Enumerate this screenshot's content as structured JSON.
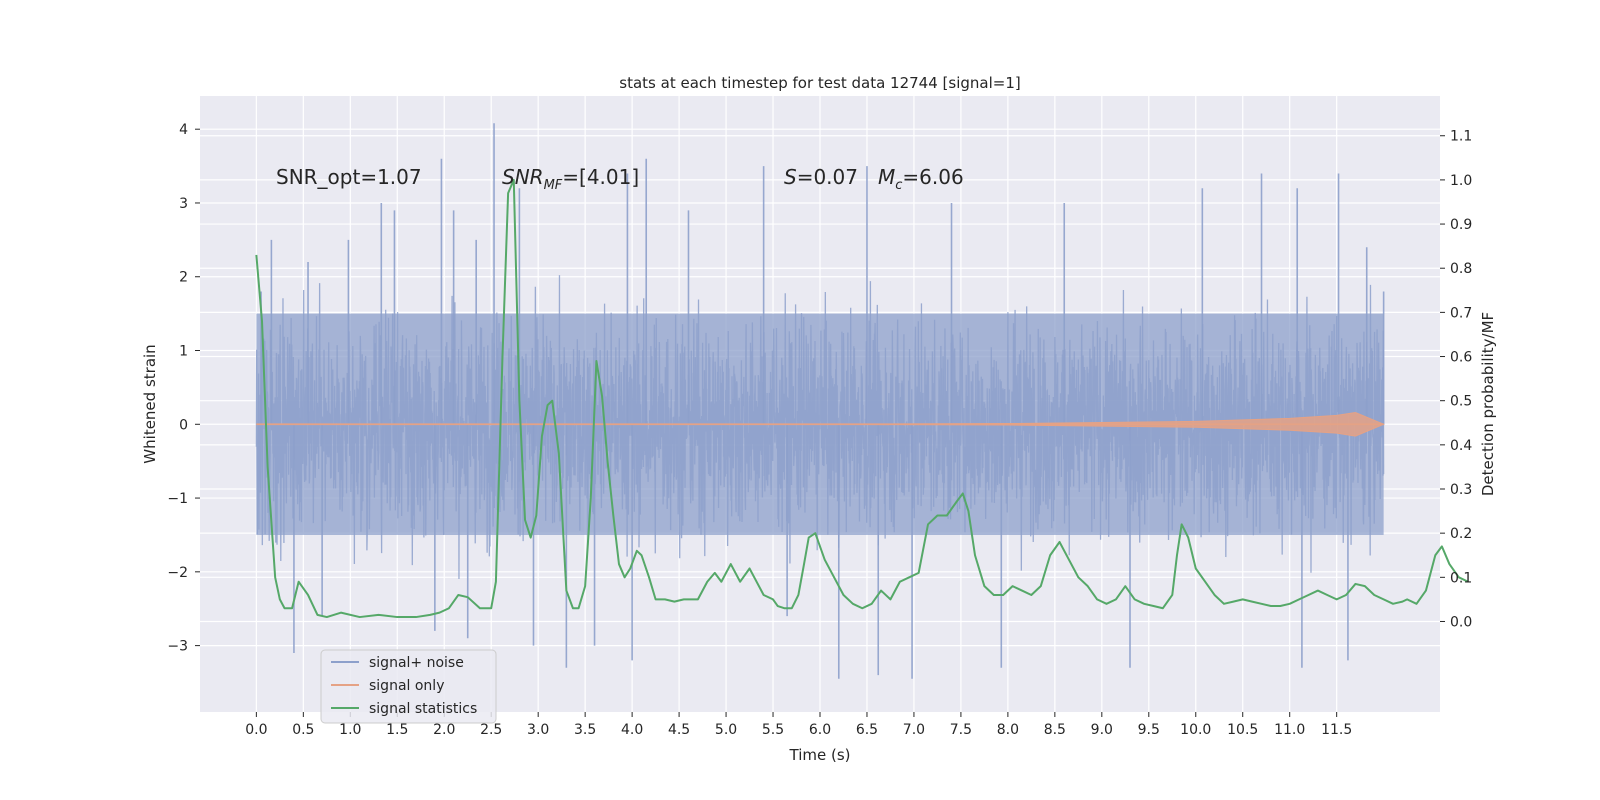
{
  "chart_data": {
    "type": "line",
    "title": "stats at each timestep for test data 12744 [signal=1]",
    "xlabel": "Time (s)",
    "ylabel_left": "Whitened strain",
    "ylabel_right": "Detection probability/MF",
    "xlim": [
      -0.6,
      12.6
    ],
    "ylim_left": [
      -3.9,
      4.45
    ],
    "ylim_right": [
      -0.205,
      1.19
    ],
    "x_ticks": [
      "0.0",
      "0.5",
      "1.0",
      "1.5",
      "2.0",
      "2.5",
      "3.0",
      "3.5",
      "4.0",
      "4.5",
      "5.0",
      "5.5",
      "6.0",
      "6.5",
      "7.0",
      "7.5",
      "8.0",
      "8.5",
      "9.0",
      "9.5",
      "10.0",
      "10.5",
      "11.0",
      "11.5"
    ],
    "y_ticks_left": [
      "4",
      "3",
      "2",
      "1",
      "0",
      "−1",
      "−2",
      "−3"
    ],
    "y_ticks_right": [
      "1.1",
      "1.0",
      "0.9",
      "0.8",
      "0.7",
      "0.6",
      "0.5",
      "0.4",
      "0.3",
      "0.2",
      "0.1",
      "0.0"
    ],
    "grid": true,
    "legend_position": "lower-left",
    "annotations": {
      "snr_opt": "SNR_opt=1.07",
      "snr_mf_main": "SNR",
      "snr_mf_sub": "MF",
      "snr_mf_value": "=[4.01]",
      "s_main": "S",
      "s_value": "=0.07",
      "mc_main": "M",
      "mc_sub": "c",
      "mc_value": "=6.06"
    },
    "series": [
      {
        "name": "signal+ noise",
        "color": "#8da0cb",
        "axis": "left",
        "style": "dense-noise",
        "time_range": [
          0.0,
          12.0
        ],
        "band_core": [
          -1.5,
          1.5
        ],
        "envelope_peak": [
          4.08,
          -3.45
        ],
        "points": [
          [
            0.05,
            1.8
          ],
          [
            0.16,
            2.5
          ],
          [
            0.4,
            -3.1
          ],
          [
            0.55,
            2.2
          ],
          [
            0.7,
            -2.6
          ],
          [
            0.98,
            2.5
          ],
          [
            1.33,
            3.0
          ],
          [
            1.47,
            2.9
          ],
          [
            1.9,
            -2.8
          ],
          [
            1.97,
            3.6
          ],
          [
            2.1,
            2.9
          ],
          [
            2.25,
            -2.9
          ],
          [
            2.34,
            2.5
          ],
          [
            2.53,
            4.08
          ],
          [
            2.8,
            3.2
          ],
          [
            2.95,
            -3.0
          ],
          [
            3.3,
            -3.3
          ],
          [
            3.6,
            -3.0
          ],
          [
            3.95,
            3.4
          ],
          [
            4.0,
            -3.2
          ],
          [
            4.15,
            3.6
          ],
          [
            4.6,
            2.9
          ],
          [
            5.4,
            3.5
          ],
          [
            5.65,
            -2.6
          ],
          [
            6.2,
            -3.45
          ],
          [
            6.5,
            3.5
          ],
          [
            6.62,
            -3.4
          ],
          [
            6.98,
            -3.45
          ],
          [
            7.4,
            3.0
          ],
          [
            7.93,
            -3.3
          ],
          [
            8.6,
            3.0
          ],
          [
            9.3,
            -3.3
          ],
          [
            10.07,
            3.2
          ],
          [
            10.7,
            3.4
          ],
          [
            11.08,
            3.2
          ],
          [
            11.13,
            -3.3
          ],
          [
            11.52,
            3.4
          ],
          [
            11.62,
            -3.2
          ],
          [
            11.82,
            2.4
          ],
          [
            12.0,
            1.8
          ]
        ]
      },
      {
        "name": "signal only",
        "color": "#e5a285",
        "axis": "left",
        "style": "chirp",
        "points": [
          [
            0.0,
            0.0
          ],
          [
            6.0,
            0.0
          ],
          [
            8.0,
            0.01
          ],
          [
            10.0,
            0.04
          ],
          [
            11.0,
            0.08
          ],
          [
            11.5,
            0.12
          ],
          [
            11.7,
            0.16
          ],
          [
            12.0,
            0.0
          ]
        ]
      },
      {
        "name": "signal statistics",
        "color": "#55a868",
        "axis": "right",
        "style": "line",
        "points": [
          [
            0.0,
            0.83
          ],
          [
            0.06,
            0.68
          ],
          [
            0.12,
            0.35
          ],
          [
            0.2,
            0.1
          ],
          [
            0.25,
            0.05
          ],
          [
            0.3,
            0.03
          ],
          [
            0.38,
            0.03
          ],
          [
            0.45,
            0.09
          ],
          [
            0.55,
            0.06
          ],
          [
            0.65,
            0.015
          ],
          [
            0.75,
            0.01
          ],
          [
            0.9,
            0.02
          ],
          [
            1.1,
            0.01
          ],
          [
            1.3,
            0.015
          ],
          [
            1.5,
            0.01
          ],
          [
            1.7,
            0.01
          ],
          [
            1.85,
            0.015
          ],
          [
            1.95,
            0.02
          ],
          [
            2.05,
            0.03
          ],
          [
            2.15,
            0.06
          ],
          [
            2.25,
            0.055
          ],
          [
            2.38,
            0.03
          ],
          [
            2.5,
            0.03
          ],
          [
            2.55,
            0.09
          ],
          [
            2.62,
            0.6
          ],
          [
            2.68,
            0.97
          ],
          [
            2.74,
            1.0
          ],
          [
            2.8,
            0.5
          ],
          [
            2.86,
            0.23
          ],
          [
            2.92,
            0.19
          ],
          [
            2.98,
            0.24
          ],
          [
            3.04,
            0.42
          ],
          [
            3.1,
            0.49
          ],
          [
            3.15,
            0.5
          ],
          [
            3.22,
            0.38
          ],
          [
            3.3,
            0.07
          ],
          [
            3.37,
            0.03
          ],
          [
            3.43,
            0.03
          ],
          [
            3.5,
            0.08
          ],
          [
            3.56,
            0.28
          ],
          [
            3.62,
            0.59
          ],
          [
            3.68,
            0.51
          ],
          [
            3.74,
            0.36
          ],
          [
            3.8,
            0.24
          ],
          [
            3.86,
            0.13
          ],
          [
            3.92,
            0.1
          ],
          [
            3.98,
            0.12
          ],
          [
            4.05,
            0.16
          ],
          [
            4.1,
            0.15
          ],
          [
            4.18,
            0.1
          ],
          [
            4.25,
            0.05
          ],
          [
            4.35,
            0.05
          ],
          [
            4.45,
            0.045
          ],
          [
            4.55,
            0.05
          ],
          [
            4.62,
            0.05
          ],
          [
            4.7,
            0.05
          ],
          [
            4.8,
            0.09
          ],
          [
            4.88,
            0.11
          ],
          [
            4.95,
            0.09
          ],
          [
            5.05,
            0.13
          ],
          [
            5.15,
            0.09
          ],
          [
            5.25,
            0.12
          ],
          [
            5.3,
            0.1
          ],
          [
            5.4,
            0.06
          ],
          [
            5.5,
            0.05
          ],
          [
            5.55,
            0.035
          ],
          [
            5.62,
            0.03
          ],
          [
            5.7,
            0.03
          ],
          [
            5.77,
            0.06
          ],
          [
            5.83,
            0.13
          ],
          [
            5.88,
            0.19
          ],
          [
            5.95,
            0.2
          ],
          [
            6.05,
            0.14
          ],
          [
            6.15,
            0.1
          ],
          [
            6.25,
            0.06
          ],
          [
            6.35,
            0.04
          ],
          [
            6.45,
            0.03
          ],
          [
            6.55,
            0.04
          ],
          [
            6.65,
            0.07
          ],
          [
            6.75,
            0.05
          ],
          [
            6.85,
            0.09
          ],
          [
            6.95,
            0.1
          ],
          [
            7.05,
            0.11
          ],
          [
            7.15,
            0.22
          ],
          [
            7.25,
            0.24
          ],
          [
            7.35,
            0.24
          ],
          [
            7.45,
            0.27
          ],
          [
            7.52,
            0.29
          ],
          [
            7.58,
            0.25
          ],
          [
            7.65,
            0.15
          ],
          [
            7.75,
            0.08
          ],
          [
            7.85,
            0.06
          ],
          [
            7.95,
            0.06
          ],
          [
            8.05,
            0.08
          ],
          [
            8.15,
            0.07
          ],
          [
            8.25,
            0.06
          ],
          [
            8.35,
            0.08
          ],
          [
            8.45,
            0.15
          ],
          [
            8.55,
            0.18
          ],
          [
            8.65,
            0.14
          ],
          [
            8.75,
            0.1
          ],
          [
            8.85,
            0.08
          ],
          [
            8.95,
            0.05
          ],
          [
            9.05,
            0.04
          ],
          [
            9.15,
            0.05
          ],
          [
            9.25,
            0.08
          ],
          [
            9.35,
            0.05
          ],
          [
            9.45,
            0.04
          ],
          [
            9.55,
            0.035
          ],
          [
            9.65,
            0.03
          ],
          [
            9.75,
            0.06
          ],
          [
            9.8,
            0.15
          ],
          [
            9.85,
            0.22
          ],
          [
            9.92,
            0.19
          ],
          [
            10.0,
            0.12
          ],
          [
            10.1,
            0.09
          ],
          [
            10.2,
            0.06
          ],
          [
            10.3,
            0.04
          ],
          [
            10.4,
            0.045
          ],
          [
            10.5,
            0.05
          ],
          [
            10.6,
            0.045
          ],
          [
            10.7,
            0.04
          ],
          [
            10.8,
            0.035
          ],
          [
            10.9,
            0.035
          ],
          [
            11.0,
            0.04
          ],
          [
            11.1,
            0.05
          ],
          [
            11.2,
            0.06
          ],
          [
            11.3,
            0.07
          ],
          [
            11.4,
            0.06
          ],
          [
            11.5,
            0.05
          ],
          [
            11.6,
            0.06
          ],
          [
            11.7,
            0.085
          ],
          [
            11.8,
            0.08
          ],
          [
            11.9,
            0.06
          ],
          [
            12.0,
            0.05
          ],
          [
            12.1,
            0.04
          ],
          [
            12.2,
            0.045
          ],
          [
            12.25,
            0.05
          ],
          [
            12.35,
            0.04
          ],
          [
            12.45,
            0.07
          ],
          [
            12.55,
            0.15
          ],
          [
            12.62,
            0.17
          ],
          [
            12.7,
            0.13
          ],
          [
            12.8,
            0.1
          ],
          [
            12.9,
            0.09
          ]
        ]
      }
    ]
  }
}
